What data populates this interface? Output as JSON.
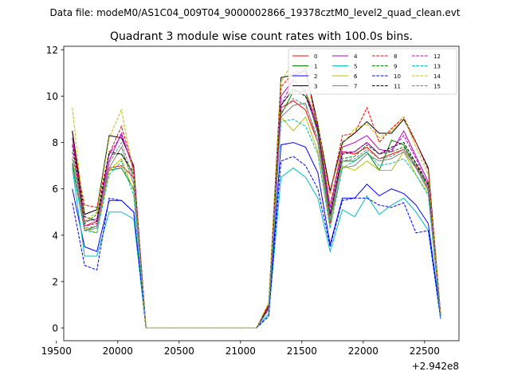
{
  "suptitle": "Data file: modeM0/AS1C04_009T04_9000002866_19378cztM0_level2_quad_clean.evt",
  "chart_data": {
    "type": "line",
    "title": "Quadrant 3 module wise count rates with 100.0s bins.",
    "xlabel": "",
    "ylabel": "",
    "x_offset_label": "+2.942e8",
    "xlim": [
      19560,
      22780
    ],
    "ylim": [
      -0.55,
      12.15
    ],
    "xticks": [
      19500,
      20000,
      20500,
      21000,
      21500,
      22000,
      22500
    ],
    "yticks": [
      0,
      2,
      4,
      6,
      8,
      10,
      12
    ],
    "grid": false,
    "legend_position": "top-right",
    "x": [
      19630,
      19730,
      19830,
      19930,
      20030,
      20130,
      20230,
      20330,
      20430,
      20530,
      20630,
      20730,
      20830,
      20930,
      21030,
      21130,
      21230,
      21330,
      21430,
      21530,
      21630,
      21730,
      21830,
      21930,
      22030,
      22130,
      22230,
      22330,
      22430,
      22530,
      22630
    ],
    "series": [
      {
        "name": "0",
        "color": "#ff0000",
        "dash": "solid",
        "values": [
          8.5,
          4.4,
          4.6,
          6.9,
          7.0,
          6.5,
          0,
          0,
          0,
          0,
          0,
          0,
          0,
          0,
          0,
          0,
          0.9,
          9.5,
          9.8,
          9.4,
          8.0,
          4.5,
          7.6,
          7.5,
          7.8,
          7.3,
          7.5,
          7.7,
          7.0,
          6.0,
          0.6
        ]
      },
      {
        "name": "1",
        "color": "#008000",
        "dash": "solid",
        "values": [
          7.1,
          4.2,
          4.4,
          6.8,
          6.9,
          6.0,
          0,
          0,
          0,
          0,
          0,
          0,
          0,
          0,
          0,
          0,
          0.9,
          9.2,
          10.2,
          10.2,
          8.4,
          4.8,
          7.2,
          7.2,
          7.6,
          6.8,
          8.1,
          7.9,
          6.9,
          6.2,
          0.5
        ]
      },
      {
        "name": "2",
        "color": "#0000ff",
        "dash": "solid",
        "values": [
          6.0,
          3.5,
          3.3,
          5.5,
          5.5,
          5.0,
          0,
          0,
          0,
          0,
          0,
          0,
          0,
          0,
          0,
          0,
          0.6,
          7.9,
          8.0,
          7.8,
          6.7,
          3.6,
          5.6,
          5.6,
          6.2,
          5.7,
          6.0,
          5.8,
          5.3,
          4.5,
          0.5
        ]
      },
      {
        "name": "3",
        "color": "#000000",
        "dash": "solid",
        "values": [
          8.5,
          4.9,
          5.1,
          8.3,
          8.2,
          7.0,
          0,
          0,
          0,
          0,
          0,
          0,
          0,
          0,
          0,
          0,
          1.0,
          10.8,
          10.9,
          11.1,
          8.8,
          5.9,
          8.0,
          8.4,
          8.9,
          8.4,
          8.4,
          9.0,
          8.0,
          6.9,
          0.6
        ]
      },
      {
        "name": "4",
        "color": "#bf00bf",
        "dash": "solid",
        "values": [
          8.2,
          4.6,
          4.7,
          7.2,
          8.4,
          6.8,
          0,
          0,
          0,
          0,
          0,
          0,
          0,
          0,
          0,
          0,
          0.9,
          10.0,
          10.7,
          10.2,
          8.7,
          5.2,
          7.8,
          8.0,
          8.3,
          7.7,
          7.6,
          8.5,
          7.4,
          6.3,
          0.5
        ]
      },
      {
        "name": "5",
        "color": "#00bfbf",
        "dash": "solid",
        "values": [
          6.9,
          3.1,
          3.1,
          5.0,
          5.0,
          4.7,
          0,
          0,
          0,
          0,
          0,
          0,
          0,
          0,
          0,
          0,
          0.6,
          6.5,
          6.9,
          6.5,
          5.6,
          3.3,
          5.1,
          4.8,
          5.7,
          4.9,
          5.3,
          5.6,
          5.0,
          4.2,
          0.4
        ]
      },
      {
        "name": "6",
        "color": "#bfbf00",
        "dash": "solid",
        "values": [
          7.3,
          4.3,
          4.1,
          6.8,
          7.3,
          5.9,
          0,
          0,
          0,
          0,
          0,
          0,
          0,
          0,
          0,
          0,
          0.8,
          9.1,
          8.5,
          9.1,
          7.6,
          4.3,
          7.0,
          6.8,
          7.2,
          6.8,
          6.8,
          7.6,
          6.6,
          5.8,
          0.5
        ]
      },
      {
        "name": "7",
        "color": "#808080",
        "dash": "solid",
        "values": [
          7.0,
          4.2,
          4.3,
          6.9,
          7.8,
          6.2,
          0,
          0,
          0,
          0,
          0,
          0,
          0,
          0,
          0,
          0,
          0.8,
          9.1,
          9.6,
          9.7,
          8.0,
          4.6,
          6.9,
          7.0,
          7.5,
          7.2,
          7.3,
          7.6,
          6.9,
          5.9,
          0.5
        ]
      },
      {
        "name": "8",
        "color": "#ff0000",
        "dash": "dashed",
        "values": [
          7.9,
          5.3,
          5.2,
          7.5,
          8.7,
          6.9,
          0,
          0,
          0,
          0,
          0,
          0,
          0,
          0,
          0,
          0,
          1.0,
          10.4,
          11.0,
          11.2,
          8.5,
          5.8,
          8.3,
          8.4,
          9.5,
          8.0,
          8.6,
          9.1,
          8.0,
          6.8,
          0.6
        ]
      },
      {
        "name": "9",
        "color": "#008000",
        "dash": "dashed",
        "values": [
          7.6,
          4.5,
          4.9,
          7.5,
          7.5,
          6.6,
          0,
          0,
          0,
          0,
          0,
          0,
          0,
          0,
          0,
          0,
          0.9,
          9.6,
          10.3,
          10.0,
          8.6,
          4.9,
          7.3,
          7.4,
          7.9,
          7.5,
          7.6,
          7.8,
          7.1,
          6.0,
          0.5
        ]
      },
      {
        "name": "10",
        "color": "#0000ff",
        "dash": "dashed",
        "values": [
          5.4,
          2.7,
          2.5,
          5.6,
          5.5,
          5.0,
          0,
          0,
          0,
          0,
          0,
          0,
          0,
          0,
          0,
          0,
          0.5,
          7.2,
          7.4,
          7.0,
          6.0,
          3.5,
          5.5,
          5.6,
          5.6,
          5.3,
          5.2,
          5.4,
          4.1,
          4.2,
          0.4
        ]
      },
      {
        "name": "11",
        "color": "#000000",
        "dash": "dashed",
        "values": [
          7.9,
          4.8,
          4.6,
          7.6,
          7.5,
          6.7,
          0,
          0,
          0,
          0,
          0,
          0,
          0,
          0,
          0,
          0,
          0.9,
          9.6,
          10.3,
          10.0,
          8.6,
          4.9,
          7.5,
          7.6,
          8.0,
          7.5,
          7.8,
          8.0,
          7.1,
          6.2,
          0.5
        ]
      },
      {
        "name": "12",
        "color": "#bf00bf",
        "dash": "dashed",
        "values": [
          7.9,
          4.4,
          4.5,
          7.5,
          8.3,
          6.9,
          0,
          0,
          0,
          0,
          0,
          0,
          0,
          0,
          0,
          0,
          0.9,
          9.6,
          10.7,
          10.2,
          8.5,
          5.0,
          7.6,
          7.6,
          8.0,
          7.5,
          7.7,
          8.3,
          7.3,
          6.1,
          0.5
        ]
      },
      {
        "name": "13",
        "color": "#00bfbf",
        "dash": "dashed",
        "values": [
          6.9,
          4.2,
          4.1,
          6.6,
          7.2,
          5.7,
          0,
          0,
          0,
          0,
          0,
          0,
          0,
          0,
          0,
          0,
          0.8,
          8.9,
          9.0,
          8.7,
          7.5,
          4.3,
          6.9,
          7.2,
          7.6,
          7.0,
          7.1,
          7.3,
          6.6,
          5.7,
          0.5
        ]
      },
      {
        "name": "14",
        "color": "#bfbf00",
        "dash": "dashed",
        "values": [
          9.5,
          4.6,
          5.0,
          8.2,
          9.4,
          6.6,
          0,
          0,
          0,
          0,
          0,
          0,
          0,
          0,
          0,
          0,
          1.1,
          10.6,
          11.5,
          10.2,
          8.9,
          5.4,
          7.9,
          8.6,
          8.8,
          8.2,
          8.5,
          9.1,
          7.8,
          6.6,
          0.6
        ]
      },
      {
        "name": "15",
        "color": "#808080",
        "dash": "dashed",
        "values": [
          7.3,
          4.3,
          4.4,
          7.1,
          8.0,
          6.4,
          0,
          0,
          0,
          0,
          0,
          0,
          0,
          0,
          0,
          0,
          0.8,
          9.3,
          9.9,
          9.6,
          8.2,
          4.7,
          7.2,
          7.3,
          7.7,
          7.3,
          7.4,
          7.7,
          7.0,
          6.0,
          0.5
        ]
      }
    ]
  }
}
